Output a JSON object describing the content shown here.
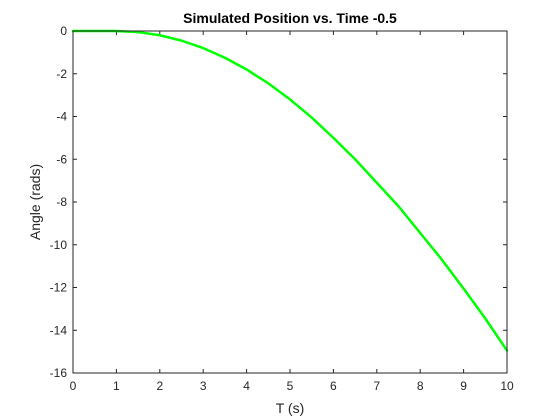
{
  "chart_data": {
    "type": "line",
    "title": "Simulated Position vs. Time -0.5",
    "xlabel": "T (s)",
    "ylabel": "Angle (rads)",
    "xlim": [
      0,
      10
    ],
    "ylim": [
      -16,
      0
    ],
    "x_ticks": [
      0,
      1,
      2,
      3,
      4,
      5,
      6,
      7,
      8,
      9,
      10
    ],
    "x_tick_labels": [
      "0",
      "1",
      "2",
      "3",
      "4",
      "5",
      "6",
      "7",
      "8",
      "9",
      "10"
    ],
    "y_ticks": [
      0,
      -2,
      -4,
      -6,
      -8,
      -10,
      -12,
      -14,
      -16
    ],
    "y_tick_labels": [
      "0",
      "-2",
      "-4",
      "-6",
      "-8",
      "-10",
      "-12",
      "-14",
      "-16"
    ],
    "grid": false,
    "box": true,
    "series": [
      {
        "color": "#00ff00",
        "x": [
          0,
          0.5,
          1,
          1.5,
          2,
          2.5,
          3,
          3.5,
          4,
          4.5,
          5,
          5.5,
          6,
          6.5,
          7,
          7.5,
          8,
          8.5,
          9,
          9.5,
          10
        ],
        "y": [
          0,
          0,
          0,
          -0.05,
          -0.2,
          -0.45,
          -0.8,
          -1.25,
          -1.8,
          -2.45,
          -3.2,
          -4.05,
          -5.0,
          -6.0,
          -7.1,
          -8.2,
          -9.45,
          -10.7,
          -12.05,
          -13.45,
          -14.95
        ]
      }
    ]
  }
}
